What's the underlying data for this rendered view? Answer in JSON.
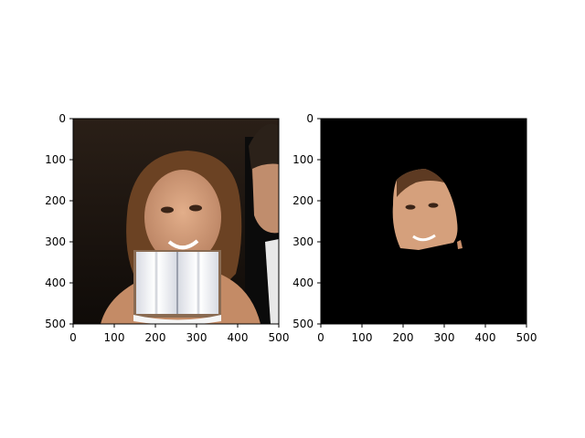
{
  "chart_data": [
    {
      "type": "image",
      "xlim": [
        0,
        500
      ],
      "ylim": [
        500,
        0
      ],
      "xticks": [
        "0",
        "100",
        "200",
        "300",
        "400",
        "500"
      ],
      "yticks": [
        "0",
        "100",
        "200",
        "300",
        "400",
        "500"
      ],
      "content": "photo of a smiling woman with a white open book pasted over the lower face/chest region, a man partly visible at the right edge",
      "overlay_region": {
        "x": [
          150,
          350
        ],
        "y": [
          325,
          500
        ]
      }
    },
    {
      "type": "image",
      "xlim": [
        0,
        500
      ],
      "ylim": [
        500,
        0
      ],
      "xticks": [
        "0",
        "100",
        "200",
        "300",
        "400",
        "500"
      ],
      "yticks": [
        "0",
        "100",
        "200",
        "300",
        "400",
        "500"
      ],
      "content": "segmentation mask result: black background with only the woman's face region visible",
      "visible_region": {
        "x": [
          175,
          345
        ],
        "y": [
          120,
          320
        ]
      }
    }
  ],
  "colors": {
    "background_mask": "#000000",
    "photo_dark": "#1e1510",
    "skin": "#d7a17c",
    "hair": "#6b4223",
    "book": "#f1f3f8"
  }
}
